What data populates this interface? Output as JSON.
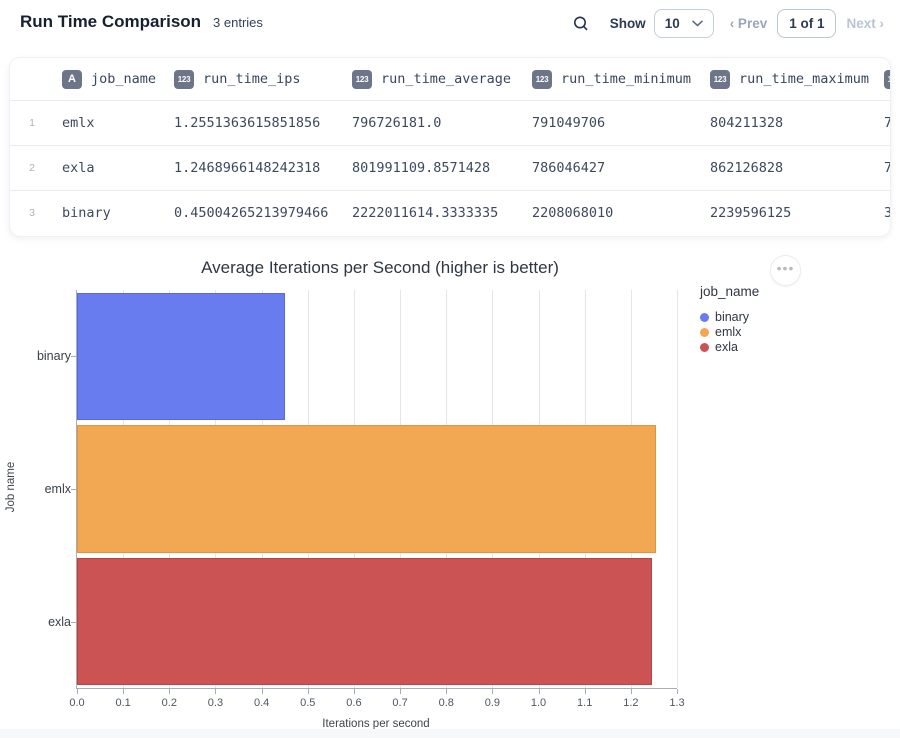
{
  "header": {
    "title": "Run Time Comparison",
    "entries_count_label": "3 entries",
    "show_label": "Show",
    "page_size": "10",
    "prev_label": "‹ Prev",
    "page_indicator": "1 of 1",
    "next_label": "Next ›"
  },
  "table": {
    "columns": [
      {
        "badge": "A",
        "label": "job_name"
      },
      {
        "badge": "123",
        "label": "run_time_ips"
      },
      {
        "badge": "123",
        "label": "run_time_average"
      },
      {
        "badge": "123",
        "label": "run_time_minimum"
      },
      {
        "badge": "123",
        "label": "run_time_maximum"
      }
    ],
    "clipped_column": {
      "badge": "123"
    },
    "rows": [
      {
        "num": "1",
        "cells": [
          "emlx",
          "1.2551363615851856",
          "796726181.0",
          "791049706",
          "804211328",
          "7"
        ]
      },
      {
        "num": "2",
        "cells": [
          "exla",
          "1.2468966148242318",
          "801991109.8571428",
          "786046427",
          "862126828",
          "7"
        ]
      },
      {
        "num": "3",
        "cells": [
          "binary",
          "0.45004265213979466",
          "2222011614.3333335",
          "2208068010",
          "2239596125",
          "3"
        ]
      }
    ]
  },
  "chart_data": {
    "type": "bar",
    "orientation": "horizontal",
    "title": "Average Iterations per Second (higher is better)",
    "categories": [
      "binary",
      "emlx",
      "exla"
    ],
    "values": [
      0.45004265213979466,
      1.2551363615851856,
      1.2468966148242318
    ],
    "colors": [
      "#687CF0",
      "#F2A852",
      "#CB5353"
    ],
    "bar_borders": [
      "#5668E2",
      "#E0943B",
      "#B94343"
    ],
    "xlabel": "Iterations per second",
    "ylabel": "Job name",
    "xlim": [
      0,
      1.3
    ],
    "x_ticks": [
      "0.0",
      "0.1",
      "0.2",
      "0.3",
      "0.4",
      "0.5",
      "0.6",
      "0.7",
      "0.8",
      "0.9",
      "1.0",
      "1.1",
      "1.2",
      "1.3"
    ],
    "grid": true,
    "legend": {
      "position": "right",
      "title": "job_name",
      "entries": [
        {
          "label": "binary",
          "color": "#687CF0"
        },
        {
          "label": "emlx",
          "color": "#F2A852"
        },
        {
          "label": "exla",
          "color": "#CB5353"
        }
      ]
    },
    "menu_icon": "ellipsis-icon"
  }
}
